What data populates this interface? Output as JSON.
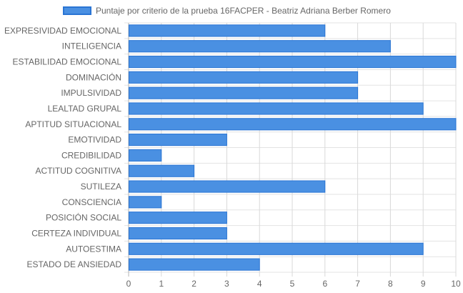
{
  "chart_data": {
    "type": "bar",
    "orientation": "horizontal",
    "title": "",
    "xlabel": "",
    "ylabel": "",
    "xlim": [
      0,
      10
    ],
    "xticks": [
      "0",
      "1",
      "2",
      "3",
      "4",
      "5",
      "6",
      "7",
      "8",
      "9",
      "10"
    ],
    "grid": true,
    "legend_position": "top",
    "categories": [
      "EXPRESIVIDAD EMOCIONAL",
      "INTELIGENCIA",
      "ESTABILIDAD EMOCIONAL",
      "DOMINACIÓN",
      "IMPULSIVIDAD",
      "LEALTAD GRUPAL",
      "APTITUD SITUACIONAL",
      "EMOTIVIDAD",
      "CREDIBILIDAD",
      "ACTITUD COGNITIVA",
      "SUTILEZA",
      "CONSCIENCIA",
      "POSICIÓN SOCIAL",
      "CERTEZA INDIVIDUAL",
      "AUTOESTIMA",
      "ESTADO DE ANSIEDAD"
    ],
    "series": [
      {
        "name": "Puntaje por criterio de la prueba 16FACPER - Beatriz Adriana Berber Romero",
        "values": [
          6,
          8,
          10,
          7,
          7,
          9,
          10,
          3,
          1,
          2,
          6,
          1,
          3,
          3,
          9,
          4
        ],
        "color": "#4a90e2",
        "border_color": "#2a75d4"
      }
    ]
  }
}
